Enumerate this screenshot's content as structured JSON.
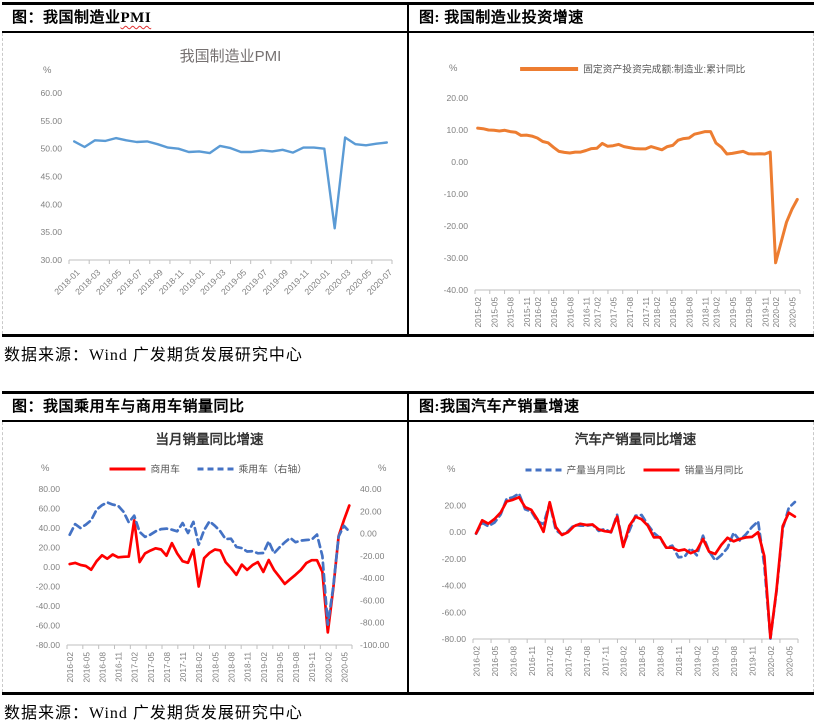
{
  "panels": [
    {
      "header_pre": "图：我国制造业",
      "header_squiggle": "PMI"
    },
    {
      "header_pre": "图: 我国制造业投资增速"
    },
    {
      "header_pre": "图：我国乘用车与商用车销量同比"
    },
    {
      "header_pre": "图:我国汽车产销量增速"
    }
  ],
  "sources": [
    "数据来源：Wind 广发期货发展研究中心",
    "数据来源：Wind 广发期货发展研究中心"
  ],
  "colors": {
    "pmi_blue": "#5B9BD5",
    "orange": "#ED7D31",
    "red": "#FF0000",
    "dash_blue": "#4472C4",
    "axis_line": "#BFBFBF",
    "axis_text": "#808080",
    "legend_text": "#595959",
    "title_gray": "#767171",
    "title_dark": "#333333"
  },
  "chart_data": [
    {
      "type": "line",
      "title": "我国制造业PMI",
      "unit": "%",
      "ylim": [
        30,
        60
      ],
      "yticks": [
        60,
        55,
        50,
        45,
        40,
        35,
        30
      ],
      "x_tick_labels": [
        "2018-01",
        "2018-03",
        "2018-05",
        "2018-07",
        "2018-09",
        "2018-11",
        "2019-01",
        "2019-03",
        "2019-05",
        "2019-07",
        "2019-09",
        "2019-11",
        "2020-01",
        "2020-03",
        "2020-05",
        "2020-07"
      ],
      "tick_indices": [
        0,
        2,
        4,
        6,
        8,
        10,
        12,
        14,
        16,
        18,
        20,
        22,
        24,
        26,
        28,
        30
      ],
      "series": [
        {
          "name": "我国制造业PMI",
          "color": "#5B9BD5",
          "dash": false,
          "axis": "left",
          "values": [
            51.3,
            50.3,
            51.5,
            51.4,
            51.9,
            51.5,
            51.2,
            51.3,
            50.8,
            50.2,
            50.0,
            49.4,
            49.5,
            49.2,
            50.5,
            50.1,
            49.4,
            49.4,
            49.7,
            49.5,
            49.8,
            49.3,
            50.2,
            50.2,
            50.0,
            35.7,
            52.0,
            50.8,
            50.6,
            50.9,
            51.1
          ]
        }
      ]
    },
    {
      "type": "line",
      "title": "",
      "unit": "%",
      "ylim": [
        -40,
        20
      ],
      "yticks": [
        20,
        10,
        0,
        -10,
        -20,
        -30,
        -40
      ],
      "legend_items": [
        {
          "label": "固定资产投资完成额:制造业:累计同比",
          "color": "#ED7D31",
          "dash": false
        }
      ],
      "x_tick_labels": [
        "2015-02",
        "2015-05",
        "2015-08",
        "2015-11",
        "2016-02",
        "2016-05",
        "2016-08",
        "2016-11",
        "2017-02",
        "2017-05",
        "2017-08",
        "2017-11",
        "2018-02",
        "2018-05",
        "2018-08",
        "2018-11",
        "2019-02",
        "2019-05",
        "2019-08",
        "2019-11",
        "2020-02",
        "2020-05"
      ],
      "tick_indices": [
        0,
        3,
        6,
        9,
        11,
        14,
        17,
        20,
        22,
        25,
        28,
        31,
        33,
        36,
        39,
        42,
        44,
        47,
        50,
        53,
        55,
        58
      ],
      "series": [
        {
          "name": "固定资产投资完成额:制造业:累计同比",
          "color": "#ED7D31",
          "dash": false,
          "axis": "left",
          "values": [
            10.6,
            10.4,
            10.0,
            9.9,
            9.7,
            9.9,
            9.5,
            9.3,
            8.3,
            8.4,
            8.1,
            7.5,
            6.4,
            6.0,
            4.6,
            3.3,
            3.0,
            2.8,
            3.1,
            3.1,
            3.6,
            4.2,
            4.3,
            5.8,
            4.9,
            5.1,
            5.5,
            4.8,
            4.5,
            4.2,
            4.1,
            4.1,
            4.8,
            4.3,
            3.8,
            4.8,
            5.2,
            6.8,
            7.3,
            7.5,
            8.7,
            9.1,
            9.5,
            9.5,
            5.9,
            4.6,
            2.5,
            2.7,
            3.0,
            3.3,
            2.6,
            2.5,
            2.6,
            2.5,
            3.1,
            -31.5,
            -25.2,
            -18.8,
            -14.8,
            -11.7
          ]
        }
      ]
    },
    {
      "type": "line",
      "title": "当月销量同比增速",
      "unit": "%",
      "unit_right": "%",
      "ylim": [
        -80,
        80
      ],
      "yticks": [
        80,
        60,
        40,
        20,
        0,
        -20,
        -40,
        -60,
        -80
      ],
      "right": {
        "lim": [
          -100,
          40
        ],
        "ticks": [
          40,
          20,
          0,
          -20,
          -40,
          -60,
          -80,
          -100
        ]
      },
      "legend_items": [
        {
          "label": "商用车",
          "color": "#FF0000",
          "dash": false
        },
        {
          "label": "乘用车（右轴）",
          "color": "#4472C4",
          "dash": true
        }
      ],
      "x_tick_labels": [
        "2016-02",
        "2016-05",
        "2016-08",
        "2016-11",
        "2017-02",
        "2017-05",
        "2017-08",
        "2017-11",
        "2018-02",
        "2018-05",
        "2018-08",
        "2018-11",
        "2019-02",
        "2019-05",
        "2019-08",
        "2019-11",
        "2020-02",
        "2020-05"
      ],
      "tick_indices": [
        0,
        3,
        6,
        9,
        12,
        15,
        18,
        21,
        24,
        27,
        30,
        33,
        36,
        39,
        42,
        45,
        48,
        51
      ],
      "series": [
        {
          "name": "商用车",
          "color": "#FF0000",
          "dash": false,
          "axis": "left",
          "values": [
            3.0,
            4.2,
            2.2,
            1.0,
            -2.8,
            6.0,
            12.0,
            8.5,
            12.8,
            10.0,
            10.5,
            10.8,
            47.9,
            5.0,
            13.9,
            16.8,
            19.2,
            18.0,
            11.6,
            24.5,
            13.8,
            6.0,
            4.3,
            18.0,
            -20.0,
            9.0,
            14.5,
            18.0,
            17.0,
            5.0,
            -1.0,
            -8.0,
            2.5,
            -3.0,
            2.0,
            5.0,
            -5.0,
            7.2,
            -3.0,
            -10.0,
            -17.3,
            -12.5,
            -8.0,
            -3.0,
            4.0,
            7.0,
            7.0,
            -5.0,
            -67.1,
            -22.6,
            31.6,
            48.0,
            63.1
          ]
        },
        {
          "name": "乘用车（右轴）",
          "color": "#4472C4",
          "dash": true,
          "axis": "right",
          "values": [
            -1.0,
            8.5,
            5.0,
            8.0,
            12.0,
            21.5,
            25.5,
            28.0,
            26.0,
            25.0,
            19.5,
            10.0,
            16.0,
            1.5,
            -3.0,
            -1.0,
            2.0,
            4.0,
            4.5,
            3.5,
            2.0,
            9.5,
            0.5,
            10.5,
            -10.0,
            3.0,
            11.0,
            7.0,
            2.0,
            -5.0,
            -4.6,
            -12.0,
            -13.0,
            -16.1,
            -15.8,
            -17.7,
            -17.4,
            -6.9,
            -17.7,
            -12.5,
            -7.8,
            -3.9,
            -7.7,
            -6.3,
            -5.8,
            -5.4,
            -0.9,
            -20.2,
            -81.7,
            -48.4,
            -2.6,
            7.0,
            1.8
          ]
        }
      ]
    },
    {
      "type": "line",
      "title": "汽车产销量同比增速",
      "unit": "%",
      "ylim": [
        -80,
        30
      ],
      "yticks": [
        20,
        0,
        -20,
        -40,
        -60,
        -80
      ],
      "legend_items": [
        {
          "label": "产量当月同比",
          "color": "#4472C4",
          "dash": true
        },
        {
          "label": "销量当月同比",
          "color": "#FF0000",
          "dash": false
        }
      ],
      "x_tick_labels": [
        "2016-02",
        "2016-05",
        "2016-08",
        "2016-11",
        "2017-02",
        "2017-05",
        "2017-08",
        "2017-11",
        "2018-02",
        "2018-05",
        "2018-08",
        "2018-11",
        "2019-02",
        "2019-05",
        "2019-08",
        "2019-11",
        "2020-02",
        "2020-05"
      ],
      "tick_indices": [
        0,
        3,
        6,
        9,
        12,
        15,
        18,
        21,
        24,
        27,
        30,
        33,
        36,
        39,
        42,
        45,
        48,
        51
      ],
      "series": [
        {
          "name": "产量当月同比",
          "color": "#4472C4",
          "dash": true,
          "axis": "left",
          "values": [
            -1.2,
            7.0,
            4.4,
            7.1,
            13.1,
            25.0,
            26.0,
            28.9,
            17.1,
            15.4,
            8.0,
            6.0,
            21.6,
            1.5,
            -1.9,
            0.7,
            5.4,
            4.8,
            4.8,
            5.5,
            0.9,
            2.3,
            -0.2,
            13.0,
            -10.0,
            1.2,
            12.3,
            12.8,
            5.5,
            -0.7,
            -4.4,
            -11.7,
            -10.1,
            -18.9,
            -18.4,
            -12.1,
            -17.4,
            -2.7,
            -14.4,
            -21.2,
            -17.2,
            -11.9,
            -0.5,
            -6.2,
            -1.7,
            3.8,
            8.1,
            -24.6,
            -79.8,
            -44.5,
            2.3,
            18.2,
            22.5
          ]
        },
        {
          "name": "销量当月同比",
          "color": "#FF0000",
          "dash": false,
          "axis": "left",
          "values": [
            -0.9,
            8.8,
            6.3,
            9.8,
            14.6,
            23.0,
            24.2,
            26.1,
            18.7,
            16.6,
            9.5,
            0.2,
            22.4,
            3.9,
            -2.2,
            -0.1,
            4.5,
            6.2,
            5.3,
            5.7,
            2.0,
            0.7,
            0.1,
            11.6,
            -11.1,
            4.7,
            11.5,
            9.6,
            4.8,
            -4.0,
            -3.8,
            -11.6,
            -11.7,
            -13.9,
            -13.0,
            -15.8,
            -13.8,
            -5.2,
            -14.6,
            -16.4,
            -9.6,
            -4.3,
            -6.9,
            -5.2,
            -4.0,
            -3.6,
            -0.1,
            -18.0,
            -79.1,
            -43.3,
            4.4,
            14.5,
            11.6
          ]
        }
      ]
    }
  ]
}
